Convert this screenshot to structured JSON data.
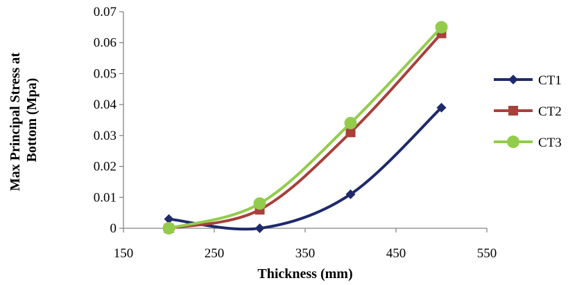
{
  "chart_data": {
    "type": "line",
    "smooth": true,
    "title": "",
    "xlabel": "Thickness (mm)",
    "ylabel_lines": [
      "Max Principal Stress at",
      "Bottom (Mpa)"
    ],
    "xlim": [
      150,
      550
    ],
    "ylim": [
      0,
      0.07
    ],
    "xticks": [
      150,
      250,
      350,
      450,
      550
    ],
    "yticks": [
      0,
      0.01,
      0.02,
      0.03,
      0.04,
      0.05,
      0.06,
      0.07
    ],
    "xtick_labels": [
      "150",
      "250",
      "350",
      "450",
      "550"
    ],
    "ytick_labels": [
      "0",
      "0.01",
      "0.02",
      "0.03",
      "0.04",
      "0.05",
      "0.06",
      "0.07"
    ],
    "grid": false,
    "legend_position": "right",
    "x": [
      200,
      300,
      400,
      500
    ],
    "series": [
      {
        "name": "CT1",
        "values": [
          0.003,
          0.0,
          0.011,
          0.039
        ],
        "color": "#1f2a6b",
        "marker": "diamond"
      },
      {
        "name": "CT2",
        "values": [
          0.0,
          0.006,
          0.031,
          0.063
        ],
        "color": "#a8403b",
        "marker": "square"
      },
      {
        "name": "CT3",
        "values": [
          0.0,
          0.008,
          0.034,
          0.065
        ],
        "color": "#93cc4a",
        "marker": "circle"
      }
    ]
  }
}
